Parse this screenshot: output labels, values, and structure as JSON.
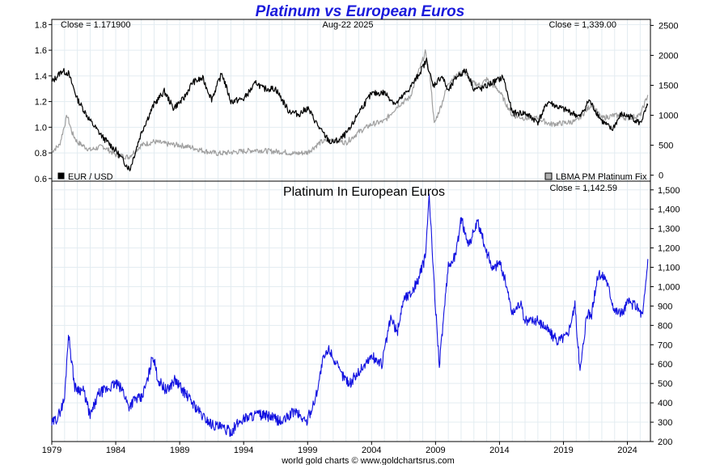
{
  "chart_title": "Platinum vs European Euros",
  "footer_credit": "world gold charts © www.goldchartsrus.com",
  "title_color": "#1a1adc",
  "chart_data": [
    {
      "type": "line",
      "panel": "top",
      "header": {
        "left": "Close = 1.171900",
        "center": "Aug-22  2025",
        "right": "Close = 1,339.00"
      },
      "left_axis": {
        "ticks": [
          "0.6",
          "0.8",
          "1.0",
          "1.2",
          "1.4",
          "1.6",
          "1.8"
        ],
        "ylim": [
          0.58,
          1.84
        ]
      },
      "right_axis": {
        "ticks": [
          "0",
          "500",
          "1000",
          "1500",
          "2000",
          "2500"
        ],
        "ylim": [
          -100,
          2600
        ]
      },
      "grid": true,
      "legend_position": "bottom",
      "series": [
        {
          "name": "EUR / USD",
          "axis": "left",
          "color": "#000000",
          "x": [
            1979,
            1979.8,
            1980.3,
            1981,
            1982,
            1983,
            1984,
            1985.1,
            1986,
            1987,
            1987.8,
            1988.5,
            1989.3,
            1990,
            1990.8,
            1991.5,
            1992.3,
            1993,
            1994,
            1995,
            1995.5,
            1996.5,
            1997.5,
            1998.3,
            1999,
            2000,
            2000.8,
            2001.5,
            2002.3,
            2003,
            2004,
            2005,
            2005.9,
            2006.8,
            2007.5,
            2008.3,
            2008.8,
            2009.5,
            2010,
            2010.7,
            2011.4,
            2012,
            2012.6,
            2013.5,
            2014.3,
            2015,
            2016,
            2017,
            2017.8,
            2018.5,
            2019.5,
            2020.3,
            2021,
            2022,
            2022.8,
            2023.5,
            2024.3,
            2025,
            2025.6
          ],
          "values": [
            1.35,
            1.44,
            1.42,
            1.22,
            1.05,
            0.92,
            0.82,
            0.67,
            0.96,
            1.18,
            1.28,
            1.15,
            1.22,
            1.35,
            1.38,
            1.22,
            1.42,
            1.2,
            1.22,
            1.35,
            1.3,
            1.3,
            1.13,
            1.1,
            1.15,
            0.98,
            0.88,
            0.9,
            0.98,
            1.12,
            1.26,
            1.27,
            1.18,
            1.28,
            1.38,
            1.52,
            1.32,
            1.4,
            1.28,
            1.4,
            1.44,
            1.3,
            1.3,
            1.35,
            1.39,
            1.11,
            1.11,
            1.04,
            1.2,
            1.16,
            1.12,
            1.08,
            1.21,
            1.05,
            0.98,
            1.1,
            1.08,
            1.03,
            1.17
          ]
        },
        {
          "name": "LBMA PM Platinum Fix",
          "axis": "right",
          "color": "#a0a0a0",
          "x": [
            1979,
            1979.6,
            1980.2,
            1980.6,
            1981,
            1982,
            1983,
            1984,
            1985,
            1986,
            1987,
            1988,
            1989,
            1990,
            1991,
            1992,
            1993,
            1994,
            1995,
            1996,
            1997,
            1998,
            1999,
            2000,
            2001,
            2002,
            2003,
            2004,
            2005,
            2006,
            2007,
            2008.2,
            2008.6,
            2008.9,
            2009.5,
            2010,
            2011.2,
            2011.8,
            2012.5,
            2013,
            2014,
            2015,
            2016,
            2017,
            2018,
            2019,
            2020,
            2021.2,
            2022,
            2023,
            2024,
            2025,
            2025.6
          ],
          "values": [
            400,
            500,
            1000,
            700,
            550,
            420,
            480,
            340,
            300,
            500,
            560,
            520,
            500,
            460,
            400,
            360,
            380,
            400,
            420,
            400,
            390,
            360,
            380,
            550,
            600,
            540,
            720,
            850,
            900,
            1150,
            1300,
            2050,
            1600,
            850,
            1200,
            1550,
            1750,
            1550,
            1500,
            1600,
            1400,
            1000,
            950,
            950,
            850,
            870,
            900,
            1180,
            950,
            1000,
            950,
            1000,
            1339
          ]
        }
      ]
    },
    {
      "type": "line",
      "panel": "bottom",
      "title": "Platinum In European Euros",
      "header_right": "Close = 1,142.59",
      "y_ticks": [
        "200",
        "300",
        "400",
        "500",
        "600",
        "700",
        "800",
        "900",
        "1,000",
        "1,100",
        "1,200",
        "1,300",
        "1,400",
        "1,500"
      ],
      "ylim": [
        200,
        1545
      ],
      "x_ticks": [
        "1979",
        "1984",
        "1989",
        "1994",
        "1999",
        "2004",
        "2009",
        "2014",
        "2019",
        "2024"
      ],
      "xlim": [
        1979,
        2025.8
      ],
      "grid": true,
      "series": [
        {
          "color": "#1010e0",
          "x": [
            1979,
            1979.5,
            1980.0,
            1980.3,
            1980.8,
            1981.5,
            1982,
            1982.7,
            1983.3,
            1984,
            1984.6,
            1985,
            1985.5,
            1986,
            1986.5,
            1986.9,
            1987.3,
            1988,
            1988.6,
            1989.3,
            1990,
            1990.8,
            1991.5,
            1992.3,
            1993,
            1993.5,
            1994,
            1995,
            1996,
            1997,
            1998,
            1998.9,
            1999.6,
            2000.2,
            2000.7,
            2001.5,
            2002.3,
            2003,
            2004,
            2004.8,
            2005.5,
            2006,
            2006.5,
            2007,
            2007.6,
            2008.2,
            2008.5,
            2008.9,
            2009.3,
            2010,
            2010.6,
            2011,
            2011.6,
            2012.3,
            2013,
            2013.5,
            2014,
            2014.5,
            2015,
            2015.6,
            2016,
            2016.8,
            2017.5,
            2018.5,
            2019.3,
            2019.9,
            2020.3,
            2020.8,
            2021.2,
            2021.7,
            2022.3,
            2023,
            2023.6,
            2024,
            2024.7,
            2025.2,
            2025.6
          ],
          "values": [
            290,
            330,
            420,
            760,
            480,
            460,
            330,
            450,
            470,
            500,
            460,
            380,
            420,
            420,
            520,
            650,
            520,
            460,
            520,
            460,
            400,
            330,
            290,
            270,
            250,
            290,
            320,
            340,
            330,
            300,
            360,
            300,
            420,
            620,
            680,
            560,
            500,
            560,
            640,
            600,
            840,
            760,
            940,
            960,
            1030,
            1150,
            1470,
            1000,
            600,
            1100,
            1170,
            1350,
            1220,
            1330,
            1180,
            1090,
            1130,
            1020,
            860,
            920,
            820,
            830,
            800,
            720,
            750,
            900,
            560,
            850,
            860,
            1060,
            1050,
            880,
            860,
            920,
            900,
            850,
            1142.59
          ]
        }
      ]
    }
  ]
}
